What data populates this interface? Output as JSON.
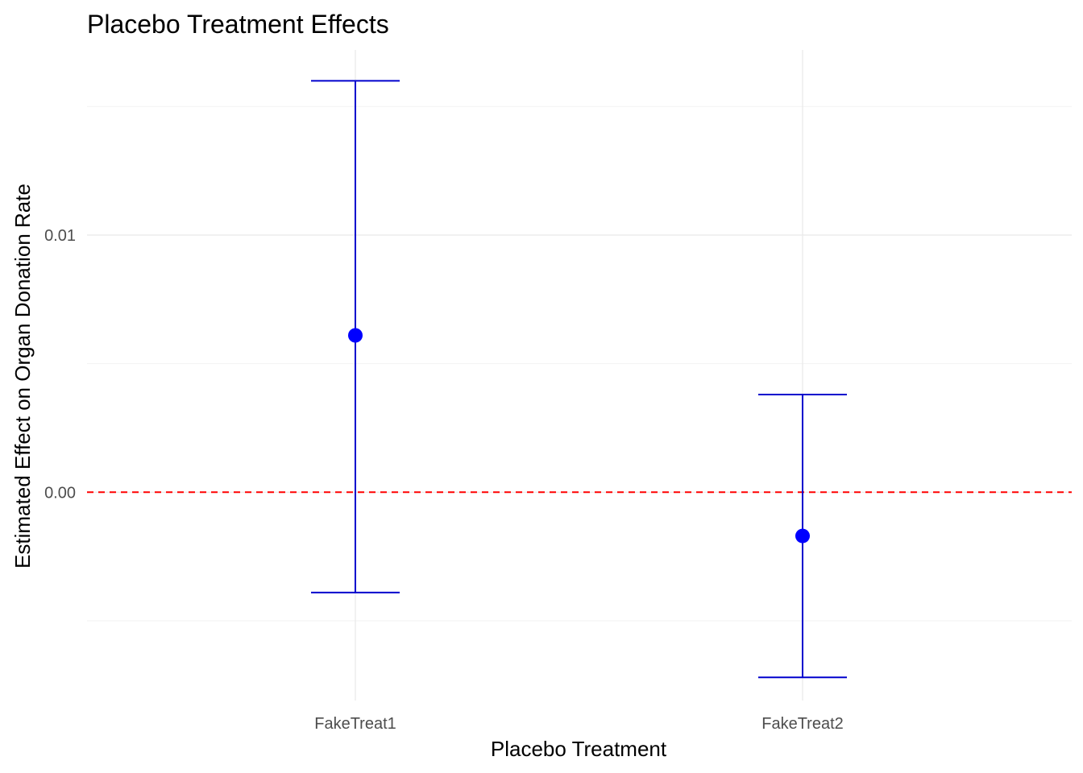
{
  "chart_data": {
    "type": "errorbar",
    "title": "Placebo Treatment Effects",
    "xlabel": "Placebo Treatment",
    "ylabel": "Estimated Effect on Organ Donation Rate",
    "categories": [
      "FakeTreat1",
      "FakeTreat2"
    ],
    "estimates": [
      0.0061,
      -0.0017
    ],
    "ci_lower": [
      -0.0039,
      -0.0072
    ],
    "ci_upper": [
      0.016,
      0.0038
    ],
    "y_ticks": [
      0.0,
      0.01
    ],
    "y_tick_labels": [
      "0.00",
      "0.01"
    ],
    "ylim": [
      -0.0081,
      0.0172
    ],
    "reference_line": {
      "y": 0.0,
      "color": "#ff0000",
      "style": "dashed"
    },
    "point_color": "#0000ff",
    "errorbar_color": "#0000cd",
    "grid": true
  }
}
